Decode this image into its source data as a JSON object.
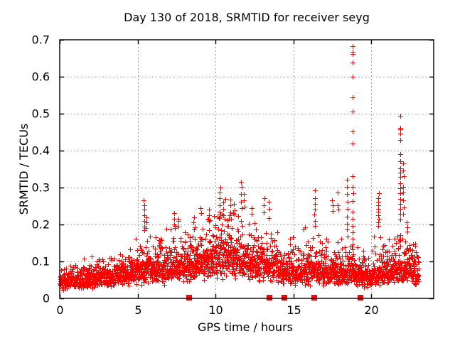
{
  "page": {
    "background": "#ffffff"
  },
  "chart_data": {
    "type": "scatter",
    "title": "Day 130 of 2018, SRMTID for receiver seyg",
    "xlabel": "GPS time / hours",
    "ylabel": "SRMTID / TECUs",
    "xlim": [
      0,
      24
    ],
    "ylim": [
      0,
      0.7
    ],
    "xticks": [
      0,
      5,
      10,
      15,
      20
    ],
    "xtick_labels": [
      "0",
      "5",
      "10",
      "15",
      "20"
    ],
    "yticks": [
      0,
      0.1,
      0.2,
      0.3,
      0.4,
      0.5,
      0.6,
      0.7
    ],
    "ytick_labels": [
      "0",
      "0.1",
      "0.2",
      "0.3",
      "0.4",
      "0.5",
      "0.6",
      "0.7"
    ],
    "grid": true,
    "legend": "none",
    "colors": {
      "marker": "#ff0000",
      "grid": "#9c9c9c",
      "border": "#000000",
      "text": "#000000",
      "background": "#ffffff"
    },
    "series": [
      {
        "name": "srmtid-scatter",
        "marker": "plus",
        "color": "#ff0000",
        "description": "dense noisy band of SRMTID values, ~2700 samples over 0-23.05 h; band rises from ~0.05 TECU at 0-2 h to ~0.12 around 10-12 h, back to ~0.07 after 14 h, with large transient spikes"
      },
      {
        "name": "flag-squares",
        "marker": "filled-square",
        "color": "#ff0000",
        "x": [
          8.3,
          13.44,
          14.4,
          16.35,
          19.3
        ],
        "y": [
          0,
          0,
          0,
          0,
          0
        ]
      }
    ],
    "scatter_model": {
      "seed": 1130,
      "n_points": 2700,
      "t_max": 23.05,
      "sigma_log": 0.42,
      "tail_prob": 0.045,
      "y_min": 0.018,
      "envelope": [
        [
          0.0,
          0.045,
          0.09
        ],
        [
          0.7,
          0.047,
          0.095
        ],
        [
          1.4,
          0.05,
          0.1
        ],
        [
          2.1,
          0.055,
          0.115
        ],
        [
          2.8,
          0.058,
          0.125
        ],
        [
          3.5,
          0.062,
          0.135
        ],
        [
          4.2,
          0.068,
          0.155
        ],
        [
          4.9,
          0.075,
          0.185
        ],
        [
          5.5,
          0.08,
          0.21
        ],
        [
          6.1,
          0.075,
          0.165
        ],
        [
          6.7,
          0.082,
          0.19
        ],
        [
          7.3,
          0.088,
          0.215
        ],
        [
          7.9,
          0.09,
          0.2
        ],
        [
          8.5,
          0.095,
          0.21
        ],
        [
          9.1,
          0.1,
          0.235
        ],
        [
          9.7,
          0.105,
          0.235
        ],
        [
          10.3,
          0.115,
          0.27
        ],
        [
          10.9,
          0.118,
          0.25
        ],
        [
          11.5,
          0.115,
          0.265
        ],
        [
          12.1,
          0.105,
          0.23
        ],
        [
          12.7,
          0.098,
          0.235
        ],
        [
          13.3,
          0.092,
          0.24
        ],
        [
          13.9,
          0.082,
          0.175
        ],
        [
          14.5,
          0.075,
          0.16
        ],
        [
          15.1,
          0.072,
          0.165
        ],
        [
          15.7,
          0.075,
          0.19
        ],
        [
          16.3,
          0.08,
          0.215
        ],
        [
          16.9,
          0.073,
          0.175
        ],
        [
          17.5,
          0.07,
          0.2
        ],
        [
          18.1,
          0.073,
          0.21
        ],
        [
          18.7,
          0.075,
          0.205
        ],
        [
          19.3,
          0.065,
          0.14
        ],
        [
          19.9,
          0.06,
          0.13
        ],
        [
          20.5,
          0.068,
          0.2
        ],
        [
          21.1,
          0.075,
          0.175
        ],
        [
          21.7,
          0.085,
          0.24
        ],
        [
          22.3,
          0.082,
          0.2
        ],
        [
          22.7,
          0.075,
          0.155
        ],
        [
          23.05,
          0.068,
          0.12
        ]
      ],
      "spikes": [
        {
          "x": 5.42,
          "ys": [
            0.265,
            0.252,
            0.24,
            0.225,
            0.21,
            0.195,
            0.185
          ]
        },
        {
          "x": 5.55,
          "ys": [
            0.22,
            0.205,
            0.19
          ]
        },
        {
          "x": 7.35,
          "ys": [
            0.23,
            0.215,
            0.2,
            0.19
          ]
        },
        {
          "x": 7.6,
          "ys": [
            0.21,
            0.195
          ]
        },
        {
          "x": 8.6,
          "ys": [
            0.22,
            0.205
          ]
        },
        {
          "x": 9.05,
          "ys": [
            0.245,
            0.23
          ]
        },
        {
          "x": 9.55,
          "ys": [
            0.24,
            0.225,
            0.21
          ]
        },
        {
          "x": 10.27,
          "ys": [
            0.3,
            0.287,
            0.272,
            0.252,
            0.235,
            0.22
          ]
        },
        {
          "x": 10.5,
          "ys": [
            0.26,
            0.242,
            0.225
          ]
        },
        {
          "x": 10.95,
          "ys": [
            0.268,
            0.252,
            0.232
          ]
        },
        {
          "x": 11.2,
          "ys": [
            0.255,
            0.238
          ]
        },
        {
          "x": 11.64,
          "ys": [
            0.315,
            0.302,
            0.282,
            0.262,
            0.245
          ]
        },
        {
          "x": 11.85,
          "ys": [
            0.282,
            0.266,
            0.248
          ]
        },
        {
          "x": 12.3,
          "ys": [
            0.245,
            0.228
          ]
        },
        {
          "x": 13.1,
          "ys": [
            0.272,
            0.252,
            0.232
          ]
        },
        {
          "x": 13.42,
          "ys": [
            0.262,
            0.242,
            0.218
          ]
        },
        {
          "x": 16.38,
          "ys": [
            0.292,
            0.272,
            0.255,
            0.24,
            0.226,
            0.21,
            0.196
          ]
        },
        {
          "x": 17.5,
          "ys": [
            0.266,
            0.251,
            0.237
          ]
        },
        {
          "x": 17.85,
          "ys": [
            0.287,
            0.252,
            0.24
          ]
        },
        {
          "x": 18.45,
          "ys": [
            0.322,
            0.302,
            0.282,
            0.262,
            0.242,
            0.222,
            0.202,
            0.186
          ]
        },
        {
          "x": 18.8,
          "ys": [
            0.682,
            0.667,
            0.662,
            0.638,
            0.6,
            0.545,
            0.506,
            0.452,
            0.419,
            0.33,
            0.302,
            0.285,
            0.263,
            0.235,
            0.215,
            0.196,
            0.178,
            0.162,
            0.147,
            0.133,
            0.12,
            0.108
          ]
        },
        {
          "x": 20.45,
          "ys": [
            0.285,
            0.272,
            0.262,
            0.251,
            0.243,
            0.234,
            0.225,
            0.215,
            0.205,
            0.196
          ]
        },
        {
          "x": 21.85,
          "ys": [
            0.494,
            0.462,
            0.457,
            0.446,
            0.428,
            0.39,
            0.371,
            0.352,
            0.34,
            0.328,
            0.312,
            0.298,
            0.284,
            0.27,
            0.256,
            0.242,
            0.228,
            0.214
          ]
        },
        {
          "x": 22.05,
          "ys": [
            0.365,
            0.346,
            0.33,
            0.302,
            0.286,
            0.266,
            0.246,
            0.228
          ]
        },
        {
          "x": 22.3,
          "ys": [
            0.205,
            0.192,
            0.18
          ]
        }
      ]
    }
  }
}
